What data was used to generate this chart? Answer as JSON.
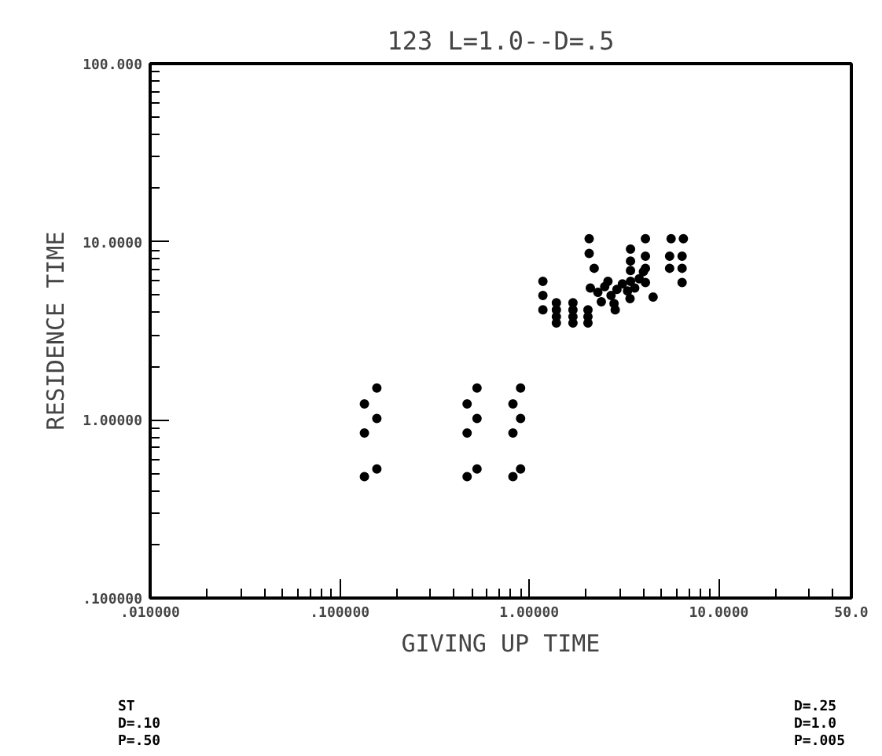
{
  "chart_data": {
    "type": "scatter",
    "title": "123 L=1.0--D=.5",
    "xlabel": "GIVING UP TIME",
    "ylabel": "RESIDENCE TIME",
    "log": "xy",
    "grid": false,
    "marker": "circle",
    "color": "#000000",
    "xlim": [
      0.01,
      50
    ],
    "ylim": [
      0.1,
      100
    ],
    "xticks": [
      {
        "value": 0.01,
        "label": ".010000"
      },
      {
        "value": 0.1,
        "label": ".100000"
      },
      {
        "value": 1,
        "label": "1.00000"
      },
      {
        "value": 10,
        "label": "10.0000"
      },
      {
        "value": 50,
        "label": "50.0"
      }
    ],
    "yticks": [
      {
        "value": 0.1,
        "label": ".100000"
      },
      {
        "value": 1,
        "label": "1.00000"
      },
      {
        "value": 10,
        "label": "10.0000"
      },
      {
        "value": 100,
        "label": "100.000"
      }
    ],
    "x": [
      0.135,
      0.135,
      0.135,
      0.157,
      0.157,
      0.157,
      0.47,
      0.47,
      0.47,
      0.53,
      0.53,
      0.53,
      0.82,
      0.82,
      0.82,
      0.9,
      0.9,
      0.9,
      1.18,
      1.18,
      1.18,
      1.39,
      1.39,
      1.39,
      1.39,
      1.7,
      1.7,
      1.7,
      1.7,
      2.04,
      2.04,
      2.04,
      2.07,
      2.07,
      2.2,
      2.1,
      2.3,
      2.5,
      2.7,
      2.9,
      3.1,
      3.3,
      2.4,
      2.8,
      3.4,
      3.6,
      3.8,
      4.0,
      2.6,
      3.42,
      3.42,
      3.42,
      3.42,
      2.84,
      4.1,
      4.1,
      4.1,
      4.1,
      4.5,
      5.5,
      5.5,
      6.5,
      6.4,
      6.4,
      6.4,
      5.6
    ],
    "values": [
      1.23,
      0.845,
      0.48,
      1.51,
      1.02,
      0.53,
      1.23,
      0.845,
      0.48,
      1.51,
      1.02,
      0.53,
      1.23,
      0.845,
      0.48,
      1.51,
      1.02,
      0.53,
      6.0,
      5.0,
      4.15,
      4.55,
      4.15,
      3.8,
      3.5,
      4.55,
      4.15,
      3.8,
      3.5,
      4.15,
      3.8,
      3.5,
      10.4,
      8.6,
      7.1,
      5.5,
      5.2,
      5.6,
      5.0,
      5.4,
      5.8,
      5.3,
      4.6,
      4.5,
      4.8,
      5.5,
      6.2,
      6.8,
      6.0,
      9.1,
      7.8,
      6.9,
      6.0,
      4.15,
      10.4,
      8.3,
      7.1,
      5.9,
      4.9,
      8.3,
      7.1,
      10.4,
      8.3,
      7.1,
      5.9,
      10.4
    ],
    "annotations": [
      "ST",
      "D=.10",
      "P=.50",
      "D=.25",
      "D=1.0",
      "P=.005"
    ]
  }
}
